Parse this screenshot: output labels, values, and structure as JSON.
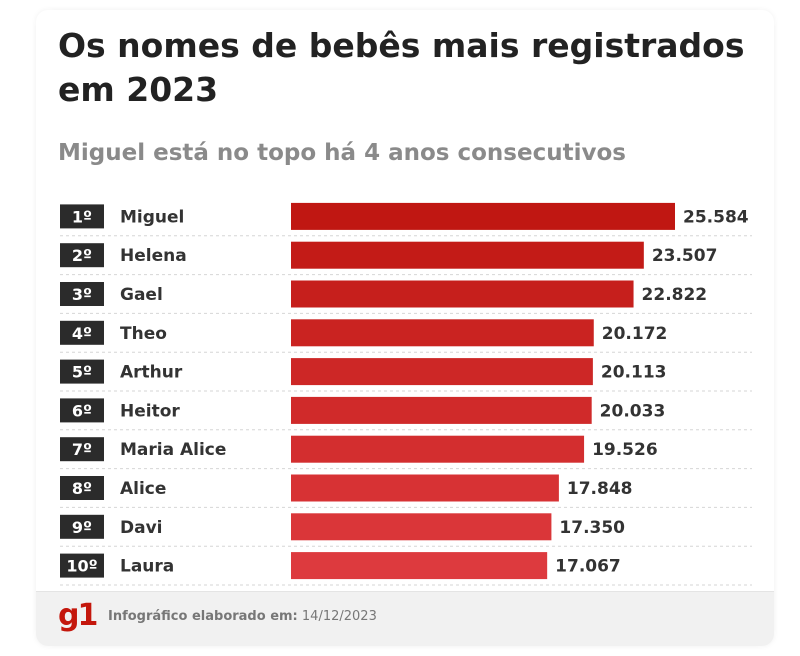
{
  "title": "Os nomes de bebês mais registrados em 2023",
  "subtitle": "Miguel está no topo há 4 anos consecutivos",
  "footer": {
    "logo": "g1",
    "credit_label": "Infográfico elaborado em:",
    "credit_date": "14/12/2023"
  },
  "colors": {
    "bar_top": "#c01712",
    "bar_bottom": "#dd3a3e",
    "rank_badge": "#2b2b2b",
    "logo": "#c4170c"
  },
  "chart_data": {
    "type": "bar",
    "orientation": "horizontal",
    "ranks": [
      "1º",
      "2º",
      "3º",
      "4º",
      "5º",
      "6º",
      "7º",
      "8º",
      "9º",
      "10º"
    ],
    "categories": [
      "Miguel",
      "Helena",
      "Gael",
      "Theo",
      "Arthur",
      "Heitor",
      "Maria Alice",
      "Alice",
      "Davi",
      "Laura"
    ],
    "values": [
      25584,
      23507,
      22822,
      20172,
      20113,
      20033,
      19526,
      17848,
      17350,
      17067
    ],
    "value_labels": [
      "25.584",
      "23.507",
      "22.822",
      "20.172",
      "20.113",
      "20.033",
      "19.526",
      "17.848",
      "17.350",
      "17.067"
    ],
    "title": "Os nomes de bebês mais registrados em 2023",
    "xlabel": "",
    "ylabel": "",
    "xlim": [
      0,
      25584
    ],
    "grid": false,
    "legend": "none"
  }
}
